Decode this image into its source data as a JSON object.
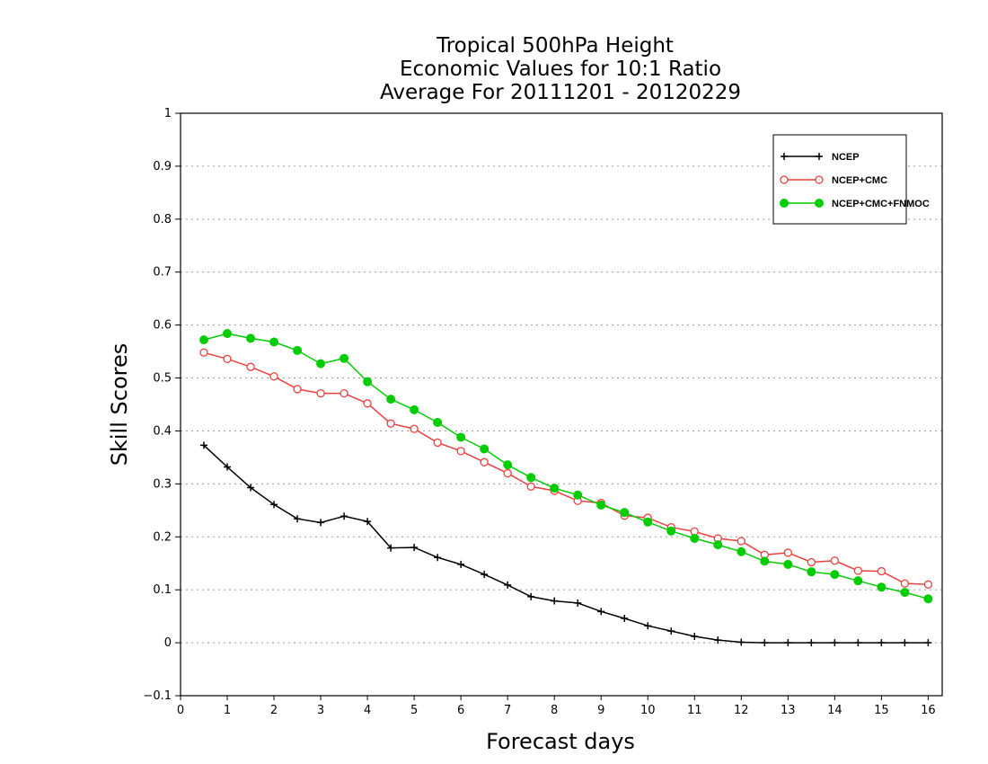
{
  "chart_data": {
    "type": "line",
    "title": [
      "Tropical 500hPa Height",
      "Economic Values for 10:1 Ratio",
      "Average For 20111201 - 20120229"
    ],
    "xlabel": "Forecast days",
    "ylabel": "Skill Scores",
    "xlim": [
      0,
      16.3
    ],
    "ylim": [
      -0.1,
      1
    ],
    "xticks": [
      "0",
      "1",
      "2",
      "3",
      "4",
      "5",
      "6",
      "7",
      "8",
      "9",
      "10",
      "11",
      "12",
      "13",
      "14",
      "15",
      "16"
    ],
    "yticks": [
      "−0.1",
      "0",
      "0.1",
      "0.2",
      "0.3",
      "0.4",
      "0.5",
      "0.6",
      "0.7",
      "0.8",
      "0.9",
      "1"
    ],
    "grid": "horizontal-dotted",
    "legend_position": "top-right",
    "x": [
      0.5,
      1,
      1.5,
      2,
      2.5,
      3,
      3.5,
      4,
      4.5,
      5,
      5.5,
      6,
      6.5,
      7,
      7.5,
      8,
      8.5,
      9,
      9.5,
      10,
      10.5,
      11,
      11.5,
      12,
      12.5,
      13,
      13.5,
      14,
      14.5,
      15,
      15.5,
      16
    ],
    "series": [
      {
        "name": "NCEP",
        "color": "#000000",
        "marker": "plus",
        "values": [
          0.373,
          0.332,
          0.293,
          0.261,
          0.234,
          0.227,
          0.239,
          0.229,
          0.179,
          0.18,
          0.161,
          0.148,
          0.129,
          0.109,
          0.087,
          0.079,
          0.075,
          0.059,
          0.046,
          0.032,
          0.022,
          0.012,
          0.005,
          0.001,
          0.0,
          0.0,
          0.0,
          0.0,
          0.0,
          0.0,
          0.0,
          0.0
        ]
      },
      {
        "name": "NCEP+CMC",
        "color": "#e8413f",
        "marker": "open-circle",
        "values": [
          0.548,
          0.536,
          0.521,
          0.503,
          0.479,
          0.471,
          0.471,
          0.452,
          0.414,
          0.404,
          0.378,
          0.362,
          0.341,
          0.32,
          0.295,
          0.287,
          0.268,
          0.264,
          0.24,
          0.236,
          0.218,
          0.21,
          0.197,
          0.192,
          0.166,
          0.17,
          0.152,
          0.155,
          0.136,
          0.135,
          0.112,
          0.11
        ]
      },
      {
        "name": "NCEP+CMC+FNMOC",
        "color": "#00cc00",
        "marker": "filled-circle",
        "values": [
          0.572,
          0.584,
          0.575,
          0.568,
          0.552,
          0.527,
          0.537,
          0.493,
          0.46,
          0.44,
          0.416,
          0.388,
          0.366,
          0.336,
          0.312,
          0.292,
          0.279,
          0.26,
          0.246,
          0.228,
          0.211,
          0.197,
          0.185,
          0.172,
          0.154,
          0.148,
          0.134,
          0.129,
          0.117,
          0.105,
          0.095,
          0.083
        ]
      }
    ]
  }
}
